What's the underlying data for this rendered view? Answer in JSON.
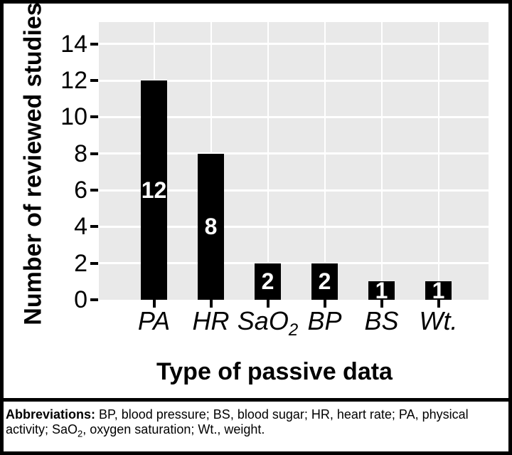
{
  "chart_data": {
    "type": "bar",
    "title": "",
    "xlabel": "Type of passive data",
    "ylabel": "Number of reviewed studies",
    "categories": [
      "PA",
      "HR",
      "SaO2",
      "BP",
      "BS",
      "Wt."
    ],
    "category_labels": [
      {
        "text": "PA",
        "sub": ""
      },
      {
        "text": "HR",
        "sub": ""
      },
      {
        "text": "SaO",
        "sub": "2"
      },
      {
        "text": "BP",
        "sub": ""
      },
      {
        "text": "BS",
        "sub": ""
      },
      {
        "text": "Wt.",
        "sub": ""
      }
    ],
    "values": [
      12,
      8,
      2,
      2,
      1,
      1
    ],
    "bar_value_labels": [
      "12",
      "8",
      "2",
      "2",
      "1",
      "1"
    ],
    "yticks": [
      0,
      2,
      4,
      6,
      8,
      10,
      12,
      14
    ],
    "ylim": [
      0,
      15.2
    ],
    "grid": "white major gridlines: horizontal at yticks, vertical at category centers",
    "legend": "none",
    "colors": {
      "bar": "#000000",
      "panel_background": "#e9e9e9",
      "gridline": "#ffffff",
      "bar_label": "#ffffff",
      "axis_text": "#000000",
      "frame_border": "#000000"
    }
  },
  "footer": {
    "segments": [
      {
        "text": "Abbreviations:",
        "bold": true,
        "sub": false
      },
      {
        "text": " BP, blood pressure; BS, blood sugar; HR, heart rate; PA, physical activity; SaO",
        "bold": false,
        "sub": false
      },
      {
        "text": "2",
        "bold": false,
        "sub": true
      },
      {
        "text": ", oxygen saturation; Wt., weight.",
        "bold": false,
        "sub": false
      }
    ]
  }
}
